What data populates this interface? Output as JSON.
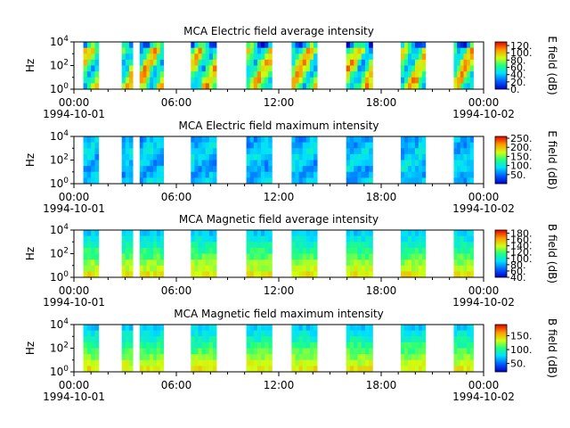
{
  "chart_data": [
    {
      "type": "heatmap",
      "title": "MCA  Electric field average intensity",
      "ylabel": "Hz",
      "cbar_label": "E field (dB)",
      "cbar_range": [
        0,
        130
      ],
      "cbar_ticks": [
        0,
        20,
        40,
        60,
        80,
        100,
        120
      ],
      "cbar_tick_labels": [
        "0.",
        "20.",
        "40.",
        "60.",
        "80.",
        "100.",
        "120."
      ],
      "y_ticks": [
        "10^0",
        "10^2",
        "10^4"
      ],
      "level": "high"
    },
    {
      "type": "heatmap",
      "title": "MCA  Electric field maximum intensity",
      "ylabel": "Hz",
      "cbar_label": "E field (dB)",
      "cbar_range": [
        0,
        260
      ],
      "cbar_ticks": [
        50,
        100,
        150,
        200,
        250
      ],
      "cbar_tick_labels": [
        "50.",
        "100.",
        "150.",
        "200.",
        "250."
      ],
      "y_ticks": [
        "10^0",
        "10^2",
        "10^4"
      ],
      "level": "low"
    },
    {
      "type": "heatmap",
      "title": "MCA  Magnetic field average intensity",
      "ylabel": "Hz",
      "cbar_label": "B field (dB)",
      "cbar_range": [
        40,
        190
      ],
      "cbar_ticks": [
        40,
        60,
        80,
        100,
        120,
        140,
        160,
        180
      ],
      "cbar_tick_labels": [
        "40.",
        "60.",
        "80.",
        "100.",
        "120.",
        "140.",
        "160.",
        "180."
      ],
      "y_ticks": [
        "10^0",
        "10^2",
        "10^4"
      ],
      "level": "banded"
    },
    {
      "type": "heatmap",
      "title": "MCA  Magnetic field maximum intensity",
      "ylabel": "Hz",
      "cbar_label": "B field (dB)",
      "cbar_range": [
        20,
        190
      ],
      "cbar_ticks": [
        50,
        100,
        150
      ],
      "cbar_tick_labels": [
        "50.",
        "100.",
        "150."
      ],
      "y_ticks": [
        "10^0",
        "10^2",
        "10^4"
      ],
      "level": "banded"
    }
  ],
  "x_axis": {
    "range": [
      "1994-10-01T00:00",
      "1994-10-02T00:00"
    ],
    "ticks": [
      "00:00",
      "06:00",
      "12:00",
      "18:00",
      "00:00"
    ],
    "date_start": "1994-10-01",
    "date_end": "1994-10-02",
    "data_intervals_hours": [
      [
        0.55,
        1.45
      ],
      [
        2.8,
        3.45
      ],
      [
        3.85,
        5.25
      ],
      [
        6.85,
        8.35
      ],
      [
        10.1,
        11.6
      ],
      [
        12.75,
        14.25
      ],
      [
        15.95,
        17.5
      ],
      [
        19.15,
        20.6
      ],
      [
        22.25,
        23.4
      ]
    ]
  }
}
